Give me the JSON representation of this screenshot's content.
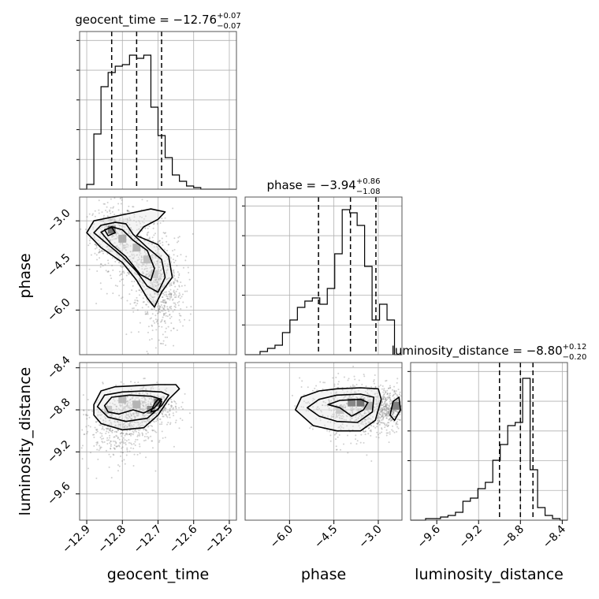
{
  "chart_data": {
    "type": "corner",
    "parameters": [
      {
        "name": "geocent_time",
        "xlabel": "geocent_time",
        "ylabel": "",
        "range": [
          -12.92,
          -12.48
        ],
        "ticks": [
          -12.9,
          -12.8,
          -12.7,
          -12.6,
          -12.5
        ],
        "tick_labels": [
          "−12.9",
          "−12.8",
          "−12.7",
          "−12.6",
          "−12.5"
        ],
        "quantiles": [
          -12.83,
          -12.76,
          -12.69
        ],
        "title": {
          "main": "geocent_time = −12.76",
          "plus": "+0.07",
          "minus": "−0.07"
        }
      },
      {
        "name": "phase",
        "xlabel": "phase",
        "ylabel": "phase",
        "range": [
          -7.5,
          -2.2
        ],
        "ticks": [
          -6.0,
          -4.5,
          -3.0
        ],
        "tick_labels": [
          "−6.0",
          "−4.5",
          "−3.0"
        ],
        "quantiles": [
          -5.02,
          -3.94,
          -3.08
        ],
        "title": {
          "main": "phase = −3.94",
          "plus": "+0.86",
          "minus": "−1.08"
        }
      },
      {
        "name": "luminosity_distance",
        "xlabel": "luminosity_distance",
        "ylabel": "luminosity_distance",
        "range": [
          -9.85,
          -8.35
        ],
        "ticks": [
          -9.6,
          -9.2,
          -8.8,
          -8.4
        ],
        "tick_labels": [
          "−9.6",
          "−9.2",
          "−8.8",
          "−8.4"
        ],
        "quantiles": [
          -9.0,
          -8.8,
          -8.68
        ],
        "title": {
          "main": "luminosity_distance = −8.80",
          "plus": "+0.12",
          "minus": "−0.20"
        }
      }
    ],
    "histograms": [
      {
        "param": "geocent_time",
        "bin_edges_range": [
          -12.92,
          -12.48
        ],
        "counts": [
          0,
          3,
          35,
          65,
          74,
          78,
          79,
          85,
          83,
          85,
          52,
          34,
          20,
          9,
          5,
          2,
          1,
          0,
          0,
          0,
          0,
          0
        ],
        "ylim": [
          0,
          100
        ]
      },
      {
        "param": "phase",
        "bin_edges_range": [
          -7.5,
          -2.2
        ],
        "counts": [
          0,
          0,
          2,
          4,
          6,
          14,
          22,
          30,
          34,
          36,
          32,
          42,
          64,
          92,
          90,
          82,
          56,
          22,
          32,
          22,
          0
        ],
        "ylim": [
          0,
          100
        ]
      },
      {
        "param": "luminosity_distance",
        "bin_edges_range": [
          -9.85,
          -8.35
        ],
        "counts": [
          0,
          0,
          1,
          1,
          2,
          3,
          5,
          12,
          14,
          20,
          24,
          38,
          48,
          60,
          62,
          90,
          32,
          8,
          3,
          1,
          0
        ],
        "ylim": [
          0,
          100
        ]
      }
    ],
    "scatter_pairs": [
      {
        "x": "geocent_time",
        "y": "phase",
        "cloud": [
          [
            -12.83,
            -3.4,
            0.03,
            0.5
          ],
          [
            -12.76,
            -4.0,
            0.05,
            0.7
          ],
          [
            -12.71,
            -4.8,
            0.04,
            0.6
          ],
          [
            -12.69,
            -5.7,
            0.03,
            0.6
          ]
        ],
        "contours": [
          [
            [
              -12.9,
              -3.4
            ],
            [
              -12.88,
              -3.0
            ],
            [
              -12.84,
              -2.9
            ],
            [
              -12.8,
              -2.8
            ],
            [
              -12.76,
              -2.7
            ],
            [
              -12.72,
              -2.6
            ],
            [
              -12.68,
              -2.7
            ],
            [
              -12.7,
              -2.95
            ],
            [
              -12.74,
              -3.2
            ],
            [
              -12.76,
              -3.5
            ],
            [
              -12.7,
              -3.8
            ],
            [
              -12.67,
              -4.2
            ],
            [
              -12.66,
              -4.9
            ],
            [
              -12.69,
              -5.4
            ],
            [
              -12.71,
              -5.9
            ],
            [
              -12.73,
              -5.6
            ],
            [
              -12.76,
              -5.0
            ],
            [
              -12.8,
              -4.4
            ],
            [
              -12.86,
              -3.9
            ]
          ],
          [
            [
              -12.88,
              -3.4
            ],
            [
              -12.86,
              -3.15
            ],
            [
              -12.82,
              -3.05
            ],
            [
              -12.79,
              -3.1
            ],
            [
              -12.77,
              -3.45
            ],
            [
              -12.73,
              -3.9
            ],
            [
              -12.69,
              -4.3
            ],
            [
              -12.68,
              -4.9
            ],
            [
              -12.7,
              -5.4
            ],
            [
              -12.73,
              -5.2
            ],
            [
              -12.76,
              -4.7
            ],
            [
              -12.8,
              -4.2
            ],
            [
              -12.84,
              -3.8
            ]
          ],
          [
            [
              -12.86,
              -3.38
            ],
            [
              -12.83,
              -3.2
            ],
            [
              -12.8,
              -3.3
            ],
            [
              -12.77,
              -3.65
            ],
            [
              -12.73,
              -4.0
            ],
            [
              -12.71,
              -4.6
            ],
            [
              -12.72,
              -5.0
            ],
            [
              -12.75,
              -4.8
            ],
            [
              -12.79,
              -4.2
            ],
            [
              -12.83,
              -3.8
            ]
          ],
          [
            [
              -12.85,
              -3.3
            ],
            [
              -12.83,
              -3.22
            ],
            [
              -12.82,
              -3.4
            ],
            [
              -12.84,
              -3.5
            ]
          ]
        ],
        "dense_cells": [
          [
            -12.83,
            -3.3,
            1.0
          ],
          [
            -12.8,
            -3.6,
            0.55
          ],
          [
            -12.76,
            -3.9,
            0.5
          ],
          [
            -12.73,
            -4.3,
            0.4
          ],
          [
            -12.71,
            -4.8,
            0.3
          ]
        ]
      },
      {
        "x": "geocent_time",
        "y": "luminosity_distance",
        "cloud": [
          [
            -12.78,
            -8.85,
            0.05,
            0.12
          ],
          [
            -12.72,
            -8.75,
            0.04,
            0.1
          ],
          [
            -12.82,
            -9.0,
            0.05,
            0.15
          ]
        ],
        "contours": [
          [
            [
              -12.88,
              -8.75
            ],
            [
              -12.86,
              -8.62
            ],
            [
              -12.82,
              -8.58
            ],
            [
              -12.76,
              -8.57
            ],
            [
              -12.7,
              -8.56
            ],
            [
              -12.65,
              -8.56
            ],
            [
              -12.64,
              -8.6
            ],
            [
              -12.67,
              -8.7
            ],
            [
              -12.7,
              -8.85
            ],
            [
              -12.74,
              -8.97
            ],
            [
              -12.8,
              -8.99
            ],
            [
              -12.86,
              -8.93
            ],
            [
              -12.88,
              -8.85
            ]
          ],
          [
            [
              -12.87,
              -8.77
            ],
            [
              -12.85,
              -8.66
            ],
            [
              -12.8,
              -8.63
            ],
            [
              -12.74,
              -8.62
            ],
            [
              -12.69,
              -8.63
            ],
            [
              -12.67,
              -8.66
            ],
            [
              -12.69,
              -8.76
            ],
            [
              -12.73,
              -8.88
            ],
            [
              -12.79,
              -8.91
            ],
            [
              -12.84,
              -8.87
            ]
          ],
          [
            [
              -12.85,
              -8.76
            ],
            [
              -12.83,
              -8.68
            ],
            [
              -12.78,
              -8.66
            ],
            [
              -12.72,
              -8.67
            ],
            [
              -12.69,
              -8.7
            ],
            [
              -12.71,
              -8.78
            ],
            [
              -12.74,
              -8.83
            ],
            [
              -12.77,
              -8.8
            ],
            [
              -12.81,
              -8.84
            ],
            [
              -12.84,
              -8.82
            ]
          ],
          [
            [
              -12.71,
              -8.74
            ],
            [
              -12.7,
              -8.7
            ],
            [
              -12.69,
              -8.72
            ],
            [
              -12.7,
              -8.8
            ],
            [
              -12.72,
              -8.82
            ]
          ]
        ],
        "dense_cells": [
          [
            -12.7,
            -8.73,
            1.0
          ],
          [
            -12.72,
            -8.8,
            0.8
          ],
          [
            -12.76,
            -8.75,
            0.5
          ],
          [
            -12.8,
            -8.7,
            0.45
          ],
          [
            -12.84,
            -8.8,
            0.35
          ]
        ]
      },
      {
        "x": "phase",
        "y": "luminosity_distance",
        "cloud": [
          [
            -4.0,
            -8.75,
            0.8,
            0.12
          ],
          [
            -3.6,
            -8.85,
            0.6,
            0.14
          ],
          [
            -2.6,
            -8.78,
            0.3,
            0.1
          ]
        ],
        "contours": [
          [
            [
              -5.8,
              -8.8
            ],
            [
              -5.6,
              -8.68
            ],
            [
              -5.0,
              -8.62
            ],
            [
              -4.4,
              -8.6
            ],
            [
              -3.6,
              -8.59
            ],
            [
              -3.0,
              -8.6
            ],
            [
              -2.9,
              -8.7
            ],
            [
              -3.1,
              -8.9
            ],
            [
              -3.6,
              -9.0
            ],
            [
              -4.4,
              -9.0
            ],
            [
              -5.2,
              -8.95
            ]
          ],
          [
            [
              -5.4,
              -8.78
            ],
            [
              -5.0,
              -8.7
            ],
            [
              -4.4,
              -8.66
            ],
            [
              -3.6,
              -8.65
            ],
            [
              -3.15,
              -8.68
            ],
            [
              -3.2,
              -8.82
            ],
            [
              -3.7,
              -8.92
            ],
            [
              -4.4,
              -8.91
            ],
            [
              -5.0,
              -8.86
            ]
          ],
          [
            [
              -4.7,
              -8.75
            ],
            [
              -4.3,
              -8.71
            ],
            [
              -3.6,
              -8.7
            ],
            [
              -3.35,
              -8.73
            ],
            [
              -3.5,
              -8.8
            ],
            [
              -3.9,
              -8.86
            ],
            [
              -4.3,
              -8.78
            ]
          ],
          [
            [
              -2.5,
              -8.72
            ],
            [
              -2.3,
              -8.68
            ],
            [
              -2.25,
              -8.8
            ],
            [
              -2.45,
              -8.9
            ],
            [
              -2.6,
              -8.85
            ]
          ]
        ],
        "dense_cells": [
          [
            -3.6,
            -8.73,
            1.0
          ],
          [
            -3.9,
            -8.73,
            0.85
          ],
          [
            -3.3,
            -8.76,
            0.5
          ],
          [
            -2.4,
            -8.76,
            0.55
          ],
          [
            -4.3,
            -8.8,
            0.35
          ]
        ]
      }
    ]
  }
}
